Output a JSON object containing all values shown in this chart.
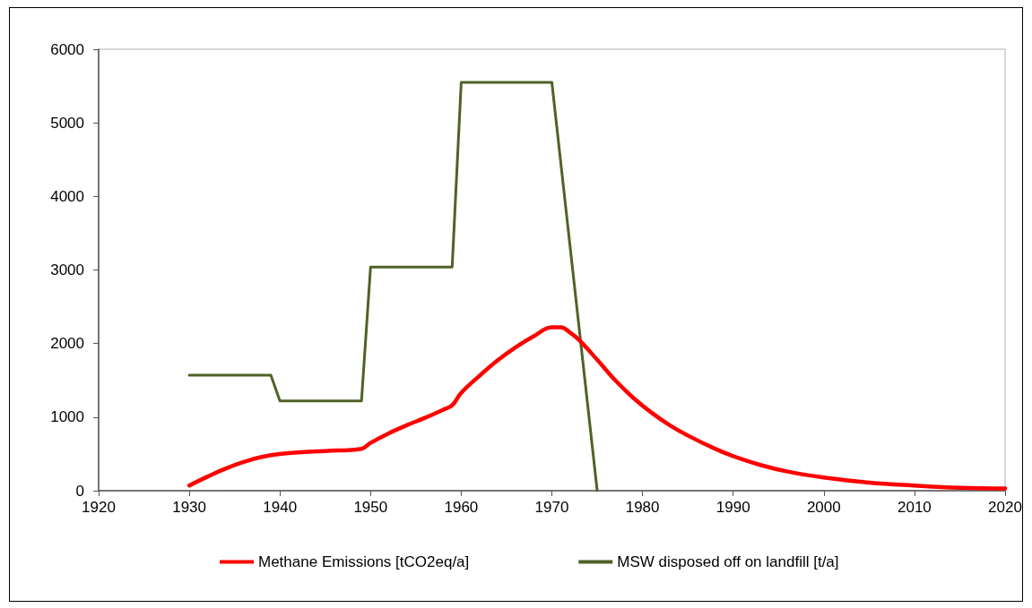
{
  "chart_data": {
    "type": "line",
    "xlim": [
      1920,
      2020
    ],
    "xticks": [
      1920,
      1930,
      1940,
      1950,
      1960,
      1970,
      1980,
      1990,
      2000,
      2010,
      2020
    ],
    "ylim": [
      0,
      6000
    ],
    "yticks": [
      0,
      1000,
      2000,
      3000,
      4000,
      5000,
      6000
    ],
    "grid": false,
    "legend": "bottom",
    "marker": "none",
    "line_style": "solid",
    "series": [
      {
        "name": "Methane Emissions [tCO2eq/a]",
        "color": "#ff0000",
        "x": [
          1930,
          1932,
          1934,
          1936,
          1938,
          1940,
          1942,
          1945,
          1949,
          1950,
          1952,
          1954,
          1956,
          1958,
          1959,
          1960,
          1962,
          1964,
          1966,
          1968,
          1970,
          1971,
          1972,
          1973,
          1975,
          1977,
          1979,
          1981,
          1983,
          1985,
          1988,
          1990,
          1993,
          1996,
          2000,
          2005,
          2010,
          2015,
          2020
        ],
        "values": [
          70,
          190,
          300,
          390,
          460,
          500,
          520,
          540,
          570,
          650,
          780,
          890,
          990,
          1100,
          1160,
          1330,
          1560,
          1770,
          1950,
          2100,
          2220,
          2220,
          2150,
          2050,
          1780,
          1500,
          1260,
          1060,
          890,
          750,
          570,
          470,
          350,
          260,
          180,
          110,
          70,
          40,
          30
        ]
      },
      {
        "name": "MSW disposed off on landfill [t/a]",
        "color": "#4f6228",
        "x": [
          1930,
          1939,
          1940,
          1949,
          1950,
          1959,
          1960,
          1970,
          1975
        ],
        "values": [
          1570,
          1570,
          1220,
          1220,
          3040,
          3040,
          5550,
          5550,
          0
        ]
      }
    ]
  }
}
